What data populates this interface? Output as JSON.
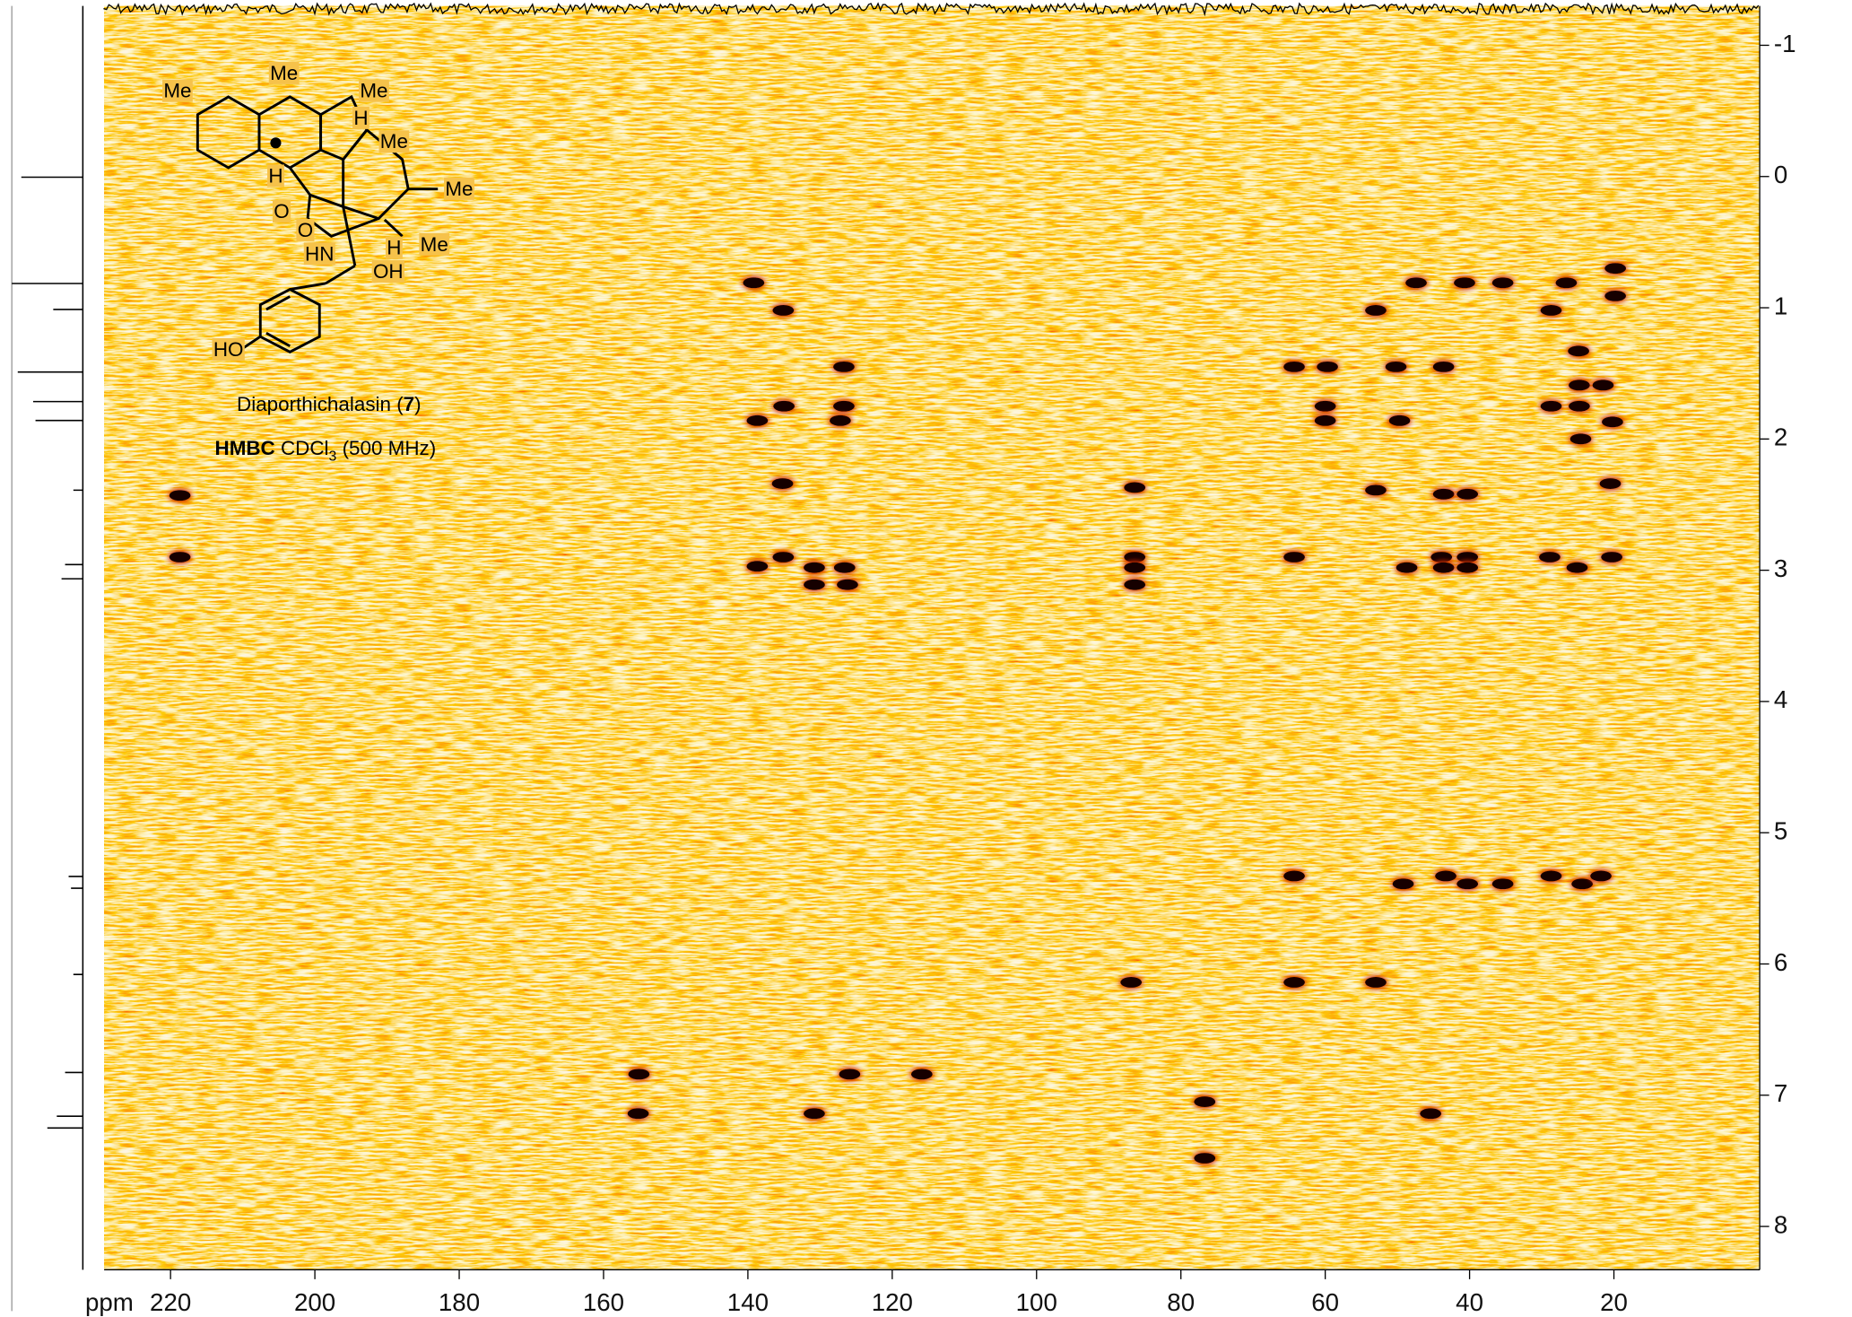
{
  "chart_data": {
    "type": "scatter",
    "x_axis_label": "ppm",
    "xlim": [
      229.2,
      -0.2
    ],
    "ylim": [
      -1.3,
      8.33
    ],
    "xticks": [
      220,
      200,
      180,
      160,
      140,
      120,
      100,
      80,
      60,
      40,
      20
    ],
    "yticks": [
      -1,
      0,
      1,
      2,
      3,
      4,
      5,
      6,
      7,
      8
    ],
    "color": "#140400",
    "peaks": {
      "x": [
        218.7,
        218.7,
        139.2,
        135.1,
        126.7,
        135,
        126.7,
        138.7,
        127.2,
        135.2,
        138.7,
        135.1,
        130.8,
        126.6,
        130.8,
        126.2,
        86.4,
        86.4,
        86.4,
        86.4,
        47.4,
        40.7,
        35.4,
        26.6,
        19.8,
        53,
        28.7,
        19.8,
        64.3,
        59.7,
        50.2,
        43.6,
        24.9,
        24.8,
        21.5,
        60,
        28.7,
        24.8,
        60,
        49.7,
        20.2,
        24.6,
        53,
        43.6,
        40.3,
        20.5,
        64.3,
        48.7,
        43.9,
        40.3,
        43.6,
        40.3,
        28.9,
        25.1,
        20.3,
        64.3,
        49.2,
        43.3,
        40.3,
        35.4,
        28.7,
        24.4,
        21.8,
        86.9,
        64.3,
        53,
        155.1,
        125.9,
        115.9,
        155.2,
        130.8,
        76.7,
        45.4,
        76.7
      ],
      "y": [
        2.43,
        2.9,
        0.81,
        1.02,
        1.45,
        1.75,
        1.75,
        1.86,
        1.86,
        2.34,
        2.97,
        2.9,
        2.98,
        2.98,
        3.11,
        3.11,
        2.37,
        2.9,
        2.98,
        3.11,
        0.81,
        0.81,
        0.81,
        0.81,
        0.7,
        1.02,
        1.02,
        0.91,
        1.45,
        1.45,
        1.45,
        1.45,
        1.33,
        1.59,
        1.59,
        1.75,
        1.75,
        1.75,
        1.86,
        1.86,
        1.87,
        2.0,
        2.39,
        2.42,
        2.42,
        2.34,
        2.9,
        2.98,
        2.9,
        2.9,
        2.98,
        2.98,
        2.9,
        2.98,
        2.9,
        5.33,
        5.39,
        5.33,
        5.39,
        5.39,
        5.33,
        5.39,
        5.33,
        6.14,
        6.14,
        6.14,
        6.84,
        6.84,
        6.84,
        7.14,
        7.14,
        7.05,
        7.14,
        7.48
      ]
    },
    "structure_labels": [
      "Me",
      "Me",
      "Me",
      "H",
      "Me",
      "Me",
      "H",
      "O",
      "O",
      "HN",
      "H",
      "Me",
      "OH",
      "HO"
    ],
    "compound_label": [
      "Diaporthichalasin (",
      "7",
      ")"
    ],
    "experiment_label": [
      "HMBC",
      " CDCl",
      "3",
      " (500 MHz)"
    ]
  }
}
